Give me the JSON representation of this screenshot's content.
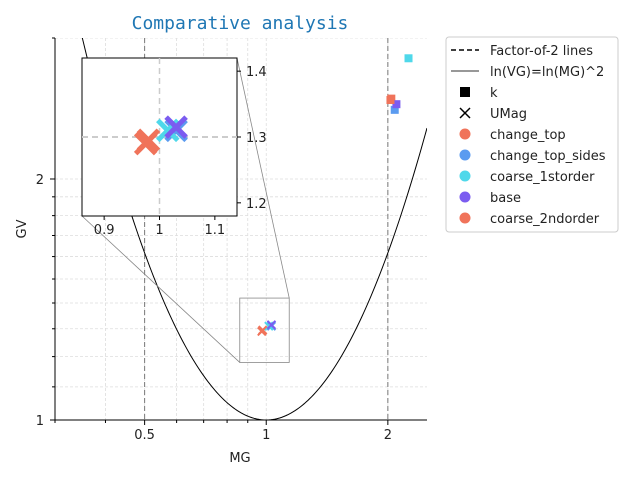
{
  "chart_data": {
    "type": "scatter",
    "title": "Comparative analysis",
    "xlabel": "MG",
    "ylabel": "GV",
    "xscale": "log",
    "yscale": "log",
    "xlim": [
      0.3,
      2.5
    ],
    "ylim": [
      1.0,
      3.0
    ],
    "xticks": [
      {
        "v": 0.5,
        "label": "0.5"
      },
      {
        "v": 1,
        "label": "1"
      },
      {
        "v": 2,
        "label": "2"
      }
    ],
    "yticks": [
      {
        "v": 1,
        "label": "1"
      },
      {
        "v": 2,
        "label": "2"
      }
    ],
    "grid": true,
    "factor2_lines_x": [
      0.5,
      2
    ],
    "curve": "ln(VG)=ln(MG)^2",
    "legend": {
      "placement": "outside-right",
      "entries": [
        {
          "label": "Factor-of-2 lines",
          "kind": "dashed"
        },
        {
          "label": "ln(VG)=ln(MG)^2",
          "kind": "line"
        },
        {
          "label": "k",
          "kind": "square"
        },
        {
          "label": "UMag",
          "kind": "x"
        },
        {
          "label": "change_top",
          "kind": "dot",
          "color": "#f0735a"
        },
        {
          "label": "change_top_sides",
          "kind": "dot",
          "color": "#5b9bf0"
        },
        {
          "label": "coarse_1storder",
          "kind": "dot",
          "color": "#4fd8ea"
        },
        {
          "label": "base",
          "kind": "dot",
          "color": "#7b5cf0"
        },
        {
          "label": "coarse_2ndorder",
          "kind": "dot",
          "color": "#f0735a"
        }
      ]
    },
    "series": [
      {
        "name": "change_top",
        "color": "#f0735a",
        "k": {
          "x": 2.04,
          "y": 2.52
        },
        "UMag": {
          "x": 0.975,
          "y": 1.29
        }
      },
      {
        "name": "change_top_sides",
        "color": "#5b9bf0",
        "k": {
          "x": 2.08,
          "y": 2.44
        },
        "UMag": {
          "x": 1.03,
          "y": 1.31
        }
      },
      {
        "name": "coarse_1storder",
        "color": "#4fd8ea",
        "k": {
          "x": 2.25,
          "y": 2.83
        },
        "UMag": {
          "x": 1.015,
          "y": 1.31
        }
      },
      {
        "name": "base",
        "color": "#7b5cf0",
        "k": {
          "x": 2.1,
          "y": 2.48
        },
        "UMag": {
          "x": 1.03,
          "y": 1.315
        }
      },
      {
        "name": "coarse_2ndorder",
        "color": "#f0735a",
        "k": {
          "x": 2.03,
          "y": 2.51
        },
        "UMag": {
          "x": 0.98,
          "y": 1.295
        }
      }
    ],
    "inset": {
      "xlim": [
        0.86,
        1.14
      ],
      "ylim": [
        1.18,
        1.42
      ],
      "xticks": [
        {
          "v": 0.9,
          "label": "0.9"
        },
        {
          "v": 1,
          "label": "1"
        },
        {
          "v": 1.1,
          "label": "1.1"
        }
      ],
      "yticks": [
        {
          "v": 1.2,
          "label": "1.2"
        },
        {
          "v": 1.3,
          "label": "1.3"
        },
        {
          "v": 1.4,
          "label": "1.4"
        }
      ]
    }
  }
}
